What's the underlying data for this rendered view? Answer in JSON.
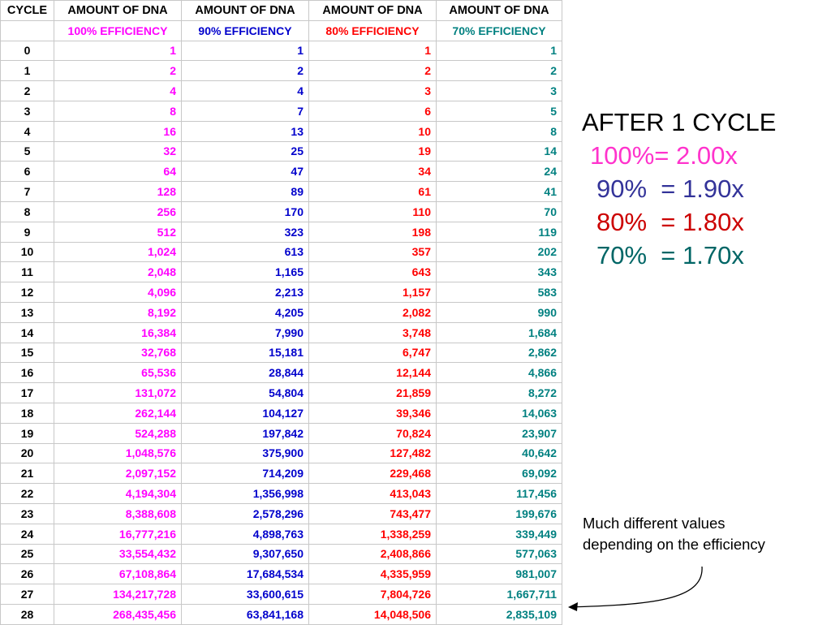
{
  "headers": {
    "cycle": "CYCLE",
    "amount_100": "AMOUNT OF DNA",
    "amount_90": "AMOUNT OF DNA",
    "amount_80": "AMOUNT OF DNA",
    "amount_70": "AMOUNT OF DNA",
    "eff_100": "100% EFFICIENCY",
    "eff_90": "90% EFFICIENCY",
    "eff_80": "80% EFFICIENCY",
    "eff_70": "70% EFFICIENCY"
  },
  "colors": {
    "eff_100": "#ff00ff",
    "eff_90": "#0000cc",
    "eff_80": "#ff0000",
    "eff_70": "#008080"
  },
  "rows": [
    {
      "cycle": "0",
      "v100": "1",
      "v90": "1",
      "v80": "1",
      "v70": "1"
    },
    {
      "cycle": "1",
      "v100": "2",
      "v90": "2",
      "v80": "2",
      "v70": "2"
    },
    {
      "cycle": "2",
      "v100": "4",
      "v90": "4",
      "v80": "3",
      "v70": "3"
    },
    {
      "cycle": "3",
      "v100": "8",
      "v90": "7",
      "v80": "6",
      "v70": "5"
    },
    {
      "cycle": "4",
      "v100": "16",
      "v90": "13",
      "v80": "10",
      "v70": "8"
    },
    {
      "cycle": "5",
      "v100": "32",
      "v90": "25",
      "v80": "19",
      "v70": "14"
    },
    {
      "cycle": "6",
      "v100": "64",
      "v90": "47",
      "v80": "34",
      "v70": "24"
    },
    {
      "cycle": "7",
      "v100": "128",
      "v90": "89",
      "v80": "61",
      "v70": "41"
    },
    {
      "cycle": "8",
      "v100": "256",
      "v90": "170",
      "v80": "110",
      "v70": "70"
    },
    {
      "cycle": "9",
      "v100": "512",
      "v90": "323",
      "v80": "198",
      "v70": "119"
    },
    {
      "cycle": "10",
      "v100": "1,024",
      "v90": "613",
      "v80": "357",
      "v70": "202"
    },
    {
      "cycle": "11",
      "v100": "2,048",
      "v90": "1,165",
      "v80": "643",
      "v70": "343"
    },
    {
      "cycle": "12",
      "v100": "4,096",
      "v90": "2,213",
      "v80": "1,157",
      "v70": "583"
    },
    {
      "cycle": "13",
      "v100": "8,192",
      "v90": "4,205",
      "v80": "2,082",
      "v70": "990"
    },
    {
      "cycle": "14",
      "v100": "16,384",
      "v90": "7,990",
      "v80": "3,748",
      "v70": "1,684"
    },
    {
      "cycle": "15",
      "v100": "32,768",
      "v90": "15,181",
      "v80": "6,747",
      "v70": "2,862"
    },
    {
      "cycle": "16",
      "v100": "65,536",
      "v90": "28,844",
      "v80": "12,144",
      "v70": "4,866"
    },
    {
      "cycle": "17",
      "v100": "131,072",
      "v90": "54,804",
      "v80": "21,859",
      "v70": "8,272"
    },
    {
      "cycle": "18",
      "v100": "262,144",
      "v90": "104,127",
      "v80": "39,346",
      "v70": "14,063"
    },
    {
      "cycle": "19",
      "v100": "524,288",
      "v90": "197,842",
      "v80": "70,824",
      "v70": "23,907"
    },
    {
      "cycle": "20",
      "v100": "1,048,576",
      "v90": "375,900",
      "v80": "127,482",
      "v70": "40,642"
    },
    {
      "cycle": "21",
      "v100": "2,097,152",
      "v90": "714,209",
      "v80": "229,468",
      "v70": "69,092"
    },
    {
      "cycle": "22",
      "v100": "4,194,304",
      "v90": "1,356,998",
      "v80": "413,043",
      "v70": "117,456"
    },
    {
      "cycle": "23",
      "v100": "8,388,608",
      "v90": "2,578,296",
      "v80": "743,477",
      "v70": "199,676"
    },
    {
      "cycle": "24",
      "v100": "16,777,216",
      "v90": "4,898,763",
      "v80": "1,338,259",
      "v70": "339,449"
    },
    {
      "cycle": "25",
      "v100": "33,554,432",
      "v90": "9,307,650",
      "v80": "2,408,866",
      "v70": "577,063"
    },
    {
      "cycle": "26",
      "v100": "67,108,864",
      "v90": "17,684,534",
      "v80": "4,335,959",
      "v70": "981,007"
    },
    {
      "cycle": "27",
      "v100": "134,217,728",
      "v90": "33,600,615",
      "v80": "7,804,726",
      "v70": "1,667,711"
    },
    {
      "cycle": "28",
      "v100": "268,435,456",
      "v90": "63,841,168",
      "v80": "14,048,506",
      "v70": "2,835,109"
    }
  ],
  "summary": {
    "title": "AFTER 1 CYCLE",
    "line_100": "100%= 2.00x",
    "line_90": "90%  = 1.90x",
    "line_80": "80%  = 1.80x",
    "line_70": "70%  = 1.70x"
  },
  "note": {
    "line1": "Much different values",
    "line2": "depending on the efficiency"
  }
}
